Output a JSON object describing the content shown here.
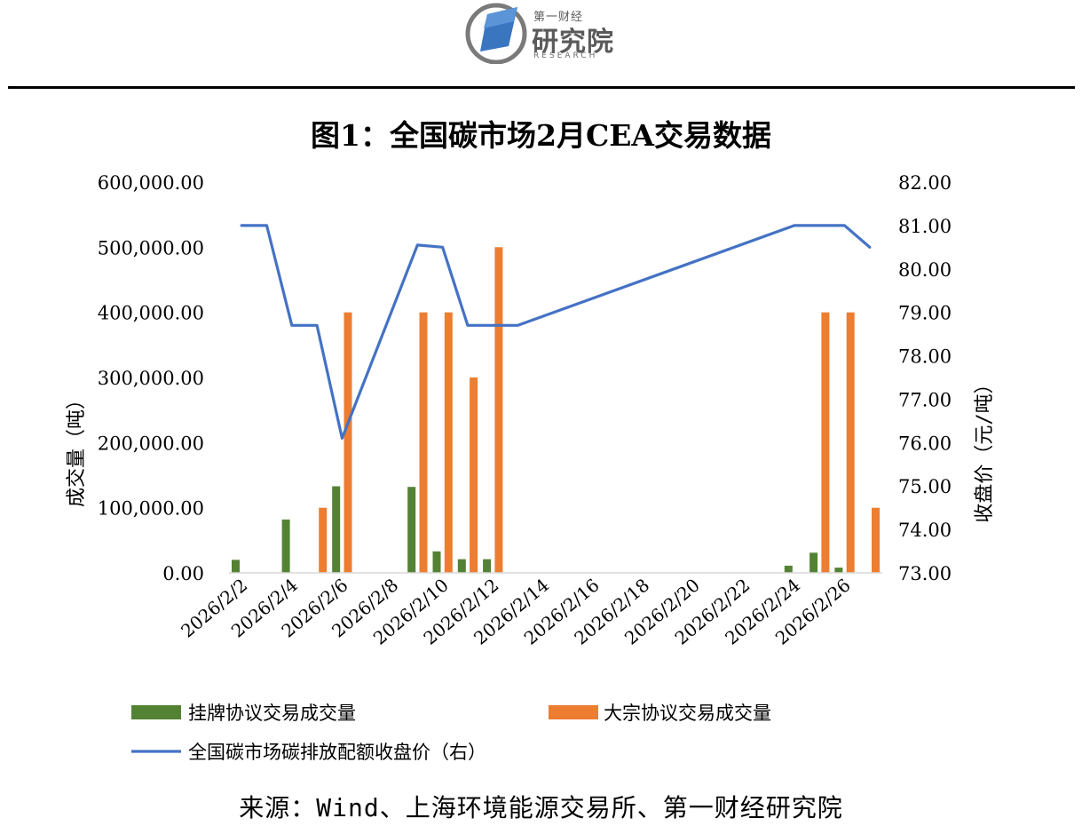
{
  "header": {
    "logo_top": "第一财经",
    "logo_main": "研究院",
    "logo_sub": "RESEARCH"
  },
  "colors": {
    "green_bar": "#548235",
    "orange_bar": "#ED7D31",
    "line": "#4472C4"
  },
  "chart_data": {
    "type": "bar",
    "title": "图1：全国碳市场2月CEA交易数据",
    "ylabel_left": "成交量（吨）",
    "ylabel_right": "收盘价（元/吨）",
    "y_left_range": [
      0,
      600000
    ],
    "y_left_ticks": [
      "0.00",
      "100,000.00",
      "200,000.00",
      "300,000.00",
      "400,000.00",
      "500,000.00",
      "600,000.00"
    ],
    "y_right_range": [
      73,
      82
    ],
    "y_right_ticks": [
      "73.00",
      "74.00",
      "75.00",
      "76.00",
      "77.00",
      "78.00",
      "79.00",
      "80.00",
      "81.00",
      "82.00"
    ],
    "x_dates": [
      "2026/2/2",
      "2026/2/3",
      "2026/2/4",
      "2026/2/5",
      "2026/2/6",
      "2026/2/7",
      "2026/2/8",
      "2026/2/9",
      "2026/2/10",
      "2026/2/11",
      "2026/2/12",
      "2026/2/13",
      "2026/2/14",
      "2026/2/15",
      "2026/2/16",
      "2026/2/17",
      "2026/2/18",
      "2026/2/19",
      "2026/2/20",
      "2026/2/21",
      "2026/2/22",
      "2026/2/23",
      "2026/2/24",
      "2026/2/25",
      "2026/2/26",
      "2026/2/27"
    ],
    "x_tick_labels": [
      "2026/2/2",
      "2026/2/4",
      "2026/2/6",
      "2026/2/8",
      "2026/2/10",
      "2026/2/12",
      "2026/2/14",
      "2026/2/16",
      "2026/2/18",
      "2026/2/20",
      "2026/2/22",
      "2026/2/24",
      "2026/2/26"
    ],
    "grid": false,
    "legend_position": "bottom",
    "series": [
      {
        "name": "挂牌协议交易成交量",
        "kind": "bar",
        "axis": "left",
        "points": [
          {
            "x": "2026/2/2",
            "y": 20000
          },
          {
            "x": "2026/2/4",
            "y": 82000
          },
          {
            "x": "2026/2/6",
            "y": 133000
          },
          {
            "x": "2026/2/9",
            "y": 132000
          },
          {
            "x": "2026/2/10",
            "y": 33000
          },
          {
            "x": "2026/2/11",
            "y": 21000
          },
          {
            "x": "2026/2/12",
            "y": 21000
          },
          {
            "x": "2026/2/24",
            "y": 11000
          },
          {
            "x": "2026/2/25",
            "y": 31000
          },
          {
            "x": "2026/2/26",
            "y": 8000
          }
        ]
      },
      {
        "name": "大宗协议交易成交量",
        "kind": "bar",
        "axis": "left",
        "points": [
          {
            "x": "2026/2/5",
            "y": 100000
          },
          {
            "x": "2026/2/6",
            "y": 400000
          },
          {
            "x": "2026/2/9",
            "y": 400000
          },
          {
            "x": "2026/2/10",
            "y": 400000
          },
          {
            "x": "2026/2/11",
            "y": 300000
          },
          {
            "x": "2026/2/12",
            "y": 500000
          },
          {
            "x": "2026/2/25",
            "y": 400000
          },
          {
            "x": "2026/2/26",
            "y": 400000
          },
          {
            "x": "2026/2/27",
            "y": 100000
          }
        ]
      },
      {
        "name": "全国碳市场碳排放配额收盘价（右）",
        "kind": "line",
        "axis": "right",
        "points": [
          {
            "x": "2026/2/2",
            "y": 81.0
          },
          {
            "x": "2026/2/3",
            "y": 81.0
          },
          {
            "x": "2026/2/4",
            "y": 78.7
          },
          {
            "x": "2026/2/5",
            "y": 78.7
          },
          {
            "x": "2026/2/6",
            "y": 76.1
          },
          {
            "x": "2026/2/9",
            "y": 80.55
          },
          {
            "x": "2026/2/10",
            "y": 80.5
          },
          {
            "x": "2026/2/11",
            "y": 78.7
          },
          {
            "x": "2026/2/12",
            "y": 78.7
          },
          {
            "x": "2026/2/13",
            "y": 78.7
          },
          {
            "x": "2026/2/24",
            "y": 81.0
          },
          {
            "x": "2026/2/25",
            "y": 81.0
          },
          {
            "x": "2026/2/26",
            "y": 81.0
          },
          {
            "x": "2026/2/27",
            "y": 80.5
          }
        ]
      }
    ]
  },
  "source": "来源：Wind、上海环境能源交易所、第一财经研究院"
}
